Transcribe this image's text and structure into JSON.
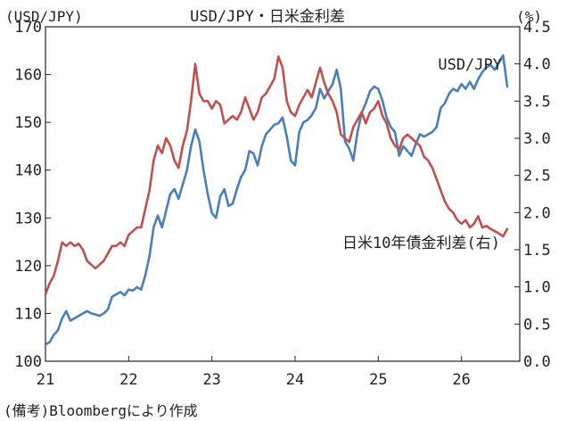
{
  "chart_data": {
    "type": "line",
    "title": "USD/JPY・日米金利差",
    "left_axis_unit": "(USD/JPY)",
    "right_axis_unit": "(%)",
    "source_note": "(備考)Bloombergにより作成",
    "x_tick_labels": [
      "21",
      "22",
      "23",
      "24",
      "25",
      "26"
    ],
    "xlim": [
      2021.0,
      2026.7
    ],
    "y_left": {
      "lim": [
        100,
        170
      ],
      "ticks": [
        "100",
        "110",
        "120",
        "130",
        "140",
        "150",
        "160",
        "170"
      ]
    },
    "y_right": {
      "lim": [
        0.0,
        4.5
      ],
      "ticks": [
        "0.0",
        "0.5",
        "1.0",
        "1.5",
        "2.0",
        "2.5",
        "3.0",
        "3.5",
        "4.0",
        "4.5"
      ]
    },
    "grid": false,
    "series": [
      {
        "name": "USD/JPY",
        "axis": "left",
        "color": "#4a7ebb",
        "label_position": "top-right",
        "points": [
          [
            2021.0,
            103.5
          ],
          [
            2021.05,
            104.0
          ],
          [
            2021.1,
            105.5
          ],
          [
            2021.15,
            106.5
          ],
          [
            2021.2,
            109.0
          ],
          [
            2021.25,
            110.5
          ],
          [
            2021.3,
            108.5
          ],
          [
            2021.35,
            109.0
          ],
          [
            2021.4,
            109.5
          ],
          [
            2021.45,
            110.0
          ],
          [
            2021.5,
            110.5
          ],
          [
            2021.55,
            110.0
          ],
          [
            2021.6,
            109.8
          ],
          [
            2021.65,
            109.5
          ],
          [
            2021.7,
            110.0
          ],
          [
            2021.75,
            110.8
          ],
          [
            2021.8,
            113.5
          ],
          [
            2021.85,
            114.0
          ],
          [
            2021.9,
            114.5
          ],
          [
            2021.95,
            113.8
          ],
          [
            2022.0,
            115.0
          ],
          [
            2022.05,
            114.8
          ],
          [
            2022.1,
            115.5
          ],
          [
            2022.15,
            115.0
          ],
          [
            2022.2,
            118.0
          ],
          [
            2022.25,
            122.0
          ],
          [
            2022.3,
            128.0
          ],
          [
            2022.35,
            130.5
          ],
          [
            2022.4,
            128.0
          ],
          [
            2022.45,
            131.5
          ],
          [
            2022.5,
            135.0
          ],
          [
            2022.55,
            136.0
          ],
          [
            2022.6,
            134.0
          ],
          [
            2022.65,
            137.0
          ],
          [
            2022.7,
            140.0
          ],
          [
            2022.75,
            145.0
          ],
          [
            2022.8,
            148.5
          ],
          [
            2022.85,
            146.0
          ],
          [
            2022.9,
            140.0
          ],
          [
            2022.95,
            135.0
          ],
          [
            2023.0,
            131.0
          ],
          [
            2023.05,
            130.0
          ],
          [
            2023.1,
            134.5
          ],
          [
            2023.15,
            136.0
          ],
          [
            2023.2,
            132.5
          ],
          [
            2023.25,
            133.0
          ],
          [
            2023.3,
            136.0
          ],
          [
            2023.35,
            138.5
          ],
          [
            2023.4,
            140.0
          ],
          [
            2023.45,
            144.0
          ],
          [
            2023.5,
            143.5
          ],
          [
            2023.55,
            141.0
          ],
          [
            2023.6,
            145.0
          ],
          [
            2023.65,
            147.5
          ],
          [
            2023.7,
            148.5
          ],
          [
            2023.75,
            149.5
          ],
          [
            2023.8,
            149.8
          ],
          [
            2023.85,
            151.0
          ],
          [
            2023.9,
            147.0
          ],
          [
            2023.95,
            142.0
          ],
          [
            2024.0,
            141.0
          ],
          [
            2024.05,
            148.0
          ],
          [
            2024.1,
            150.0
          ],
          [
            2024.15,
            150.5
          ],
          [
            2024.2,
            151.5
          ],
          [
            2024.25,
            153.0
          ],
          [
            2024.3,
            157.0
          ],
          [
            2024.35,
            155.0
          ],
          [
            2024.4,
            156.5
          ],
          [
            2024.45,
            158.0
          ],
          [
            2024.5,
            161.0
          ],
          [
            2024.55,
            157.0
          ],
          [
            2024.6,
            146.0
          ],
          [
            2024.65,
            144.5
          ],
          [
            2024.7,
            142.0
          ],
          [
            2024.75,
            148.0
          ],
          [
            2024.8,
            152.0
          ],
          [
            2024.85,
            154.0
          ],
          [
            2024.9,
            156.5
          ],
          [
            2024.95,
            157.5
          ],
          [
            2025.0,
            157.0
          ],
          [
            2025.05,
            154.5
          ],
          [
            2025.1,
            151.0
          ],
          [
            2025.15,
            149.0
          ],
          [
            2025.2,
            148.0
          ],
          [
            2025.25,
            143.0
          ],
          [
            2025.3,
            145.0
          ],
          [
            2025.35,
            144.0
          ],
          [
            2025.4,
            143.0
          ],
          [
            2025.45,
            145.5
          ],
          [
            2025.5,
            147.5
          ],
          [
            2025.55,
            147.0
          ],
          [
            2025.6,
            147.5
          ],
          [
            2025.65,
            148.0
          ],
          [
            2025.7,
            149.0
          ],
          [
            2025.75,
            153.0
          ],
          [
            2025.8,
            154.0
          ],
          [
            2025.85,
            156.0
          ],
          [
            2025.9,
            157.0
          ],
          [
            2025.95,
            156.5
          ],
          [
            2026.0,
            158.0
          ],
          [
            2026.05,
            157.0
          ],
          [
            2026.1,
            158.5
          ],
          [
            2026.15,
            157.0
          ],
          [
            2026.2,
            159.0
          ],
          [
            2026.25,
            160.5
          ],
          [
            2026.3,
            161.5
          ],
          [
            2026.35,
            162.0
          ],
          [
            2026.4,
            161.0
          ],
          [
            2026.45,
            162.5
          ],
          [
            2026.5,
            164.0
          ],
          [
            2026.55,
            157.5
          ]
        ]
      },
      {
        "name": "日米10年債金利差(右)",
        "axis": "right",
        "color": "#c0504d",
        "label_position": "right",
        "points": [
          [
            2021.0,
            0.9
          ],
          [
            2021.05,
            1.05
          ],
          [
            2021.1,
            1.15
          ],
          [
            2021.15,
            1.35
          ],
          [
            2021.2,
            1.6
          ],
          [
            2021.25,
            1.55
          ],
          [
            2021.3,
            1.6
          ],
          [
            2021.35,
            1.55
          ],
          [
            2021.4,
            1.58
          ],
          [
            2021.45,
            1.5
          ],
          [
            2021.5,
            1.35
          ],
          [
            2021.55,
            1.3
          ],
          [
            2021.6,
            1.25
          ],
          [
            2021.65,
            1.3
          ],
          [
            2021.7,
            1.35
          ],
          [
            2021.75,
            1.45
          ],
          [
            2021.8,
            1.55
          ],
          [
            2021.85,
            1.55
          ],
          [
            2021.9,
            1.6
          ],
          [
            2021.95,
            1.55
          ],
          [
            2022.0,
            1.7
          ],
          [
            2022.05,
            1.75
          ],
          [
            2022.1,
            1.8
          ],
          [
            2022.15,
            1.8
          ],
          [
            2022.2,
            2.05
          ],
          [
            2022.25,
            2.3
          ],
          [
            2022.3,
            2.7
          ],
          [
            2022.35,
            2.9
          ],
          [
            2022.4,
            2.8
          ],
          [
            2022.45,
            3.0
          ],
          [
            2022.5,
            2.9
          ],
          [
            2022.55,
            2.7
          ],
          [
            2022.6,
            2.6
          ],
          [
            2022.65,
            2.9
          ],
          [
            2022.7,
            3.1
          ],
          [
            2022.75,
            3.5
          ],
          [
            2022.8,
            4.0
          ],
          [
            2022.85,
            3.6
          ],
          [
            2022.9,
            3.5
          ],
          [
            2022.95,
            3.5
          ],
          [
            2023.0,
            3.4
          ],
          [
            2023.05,
            3.5
          ],
          [
            2023.1,
            3.45
          ],
          [
            2023.15,
            3.2
          ],
          [
            2023.2,
            3.25
          ],
          [
            2023.25,
            3.3
          ],
          [
            2023.3,
            3.25
          ],
          [
            2023.35,
            3.35
          ],
          [
            2023.4,
            3.55
          ],
          [
            2023.45,
            3.4
          ],
          [
            2023.5,
            3.25
          ],
          [
            2023.55,
            3.35
          ],
          [
            2023.6,
            3.55
          ],
          [
            2023.65,
            3.6
          ],
          [
            2023.7,
            3.7
          ],
          [
            2023.75,
            3.8
          ],
          [
            2023.8,
            4.1
          ],
          [
            2023.85,
            3.95
          ],
          [
            2023.9,
            3.5
          ],
          [
            2023.95,
            3.35
          ],
          [
            2024.0,
            3.3
          ],
          [
            2024.05,
            3.45
          ],
          [
            2024.1,
            3.55
          ],
          [
            2024.15,
            3.65
          ],
          [
            2024.2,
            3.55
          ],
          [
            2024.25,
            3.75
          ],
          [
            2024.3,
            3.95
          ],
          [
            2024.35,
            3.75
          ],
          [
            2024.4,
            3.6
          ],
          [
            2024.45,
            3.5
          ],
          [
            2024.5,
            3.35
          ],
          [
            2024.55,
            3.05
          ],
          [
            2024.6,
            3.0
          ],
          [
            2024.65,
            2.95
          ],
          [
            2024.7,
            3.15
          ],
          [
            2024.75,
            3.25
          ],
          [
            2024.8,
            3.35
          ],
          [
            2024.85,
            3.2
          ],
          [
            2024.9,
            3.35
          ],
          [
            2024.95,
            3.4
          ],
          [
            2025.0,
            3.5
          ],
          [
            2025.05,
            3.3
          ],
          [
            2025.1,
            3.2
          ],
          [
            2025.15,
            3.0
          ],
          [
            2025.2,
            2.9
          ],
          [
            2025.25,
            2.85
          ],
          [
            2025.3,
            3.0
          ],
          [
            2025.35,
            3.05
          ],
          [
            2025.4,
            3.0
          ],
          [
            2025.45,
            2.95
          ],
          [
            2025.5,
            2.9
          ],
          [
            2025.55,
            2.75
          ],
          [
            2025.6,
            2.7
          ],
          [
            2025.65,
            2.6
          ],
          [
            2025.7,
            2.45
          ],
          [
            2025.75,
            2.3
          ],
          [
            2025.8,
            2.15
          ],
          [
            2025.85,
            2.05
          ],
          [
            2025.9,
            2.0
          ],
          [
            2025.95,
            1.9
          ],
          [
            2026.0,
            1.85
          ],
          [
            2026.05,
            1.9
          ],
          [
            2026.1,
            1.8
          ],
          [
            2026.15,
            1.85
          ],
          [
            2026.2,
            1.95
          ],
          [
            2026.25,
            1.8
          ],
          [
            2026.3,
            1.82
          ],
          [
            2026.35,
            1.78
          ],
          [
            2026.4,
            1.75
          ],
          [
            2026.45,
            1.72
          ],
          [
            2026.5,
            1.68
          ],
          [
            2026.55,
            1.78
          ]
        ]
      }
    ]
  }
}
